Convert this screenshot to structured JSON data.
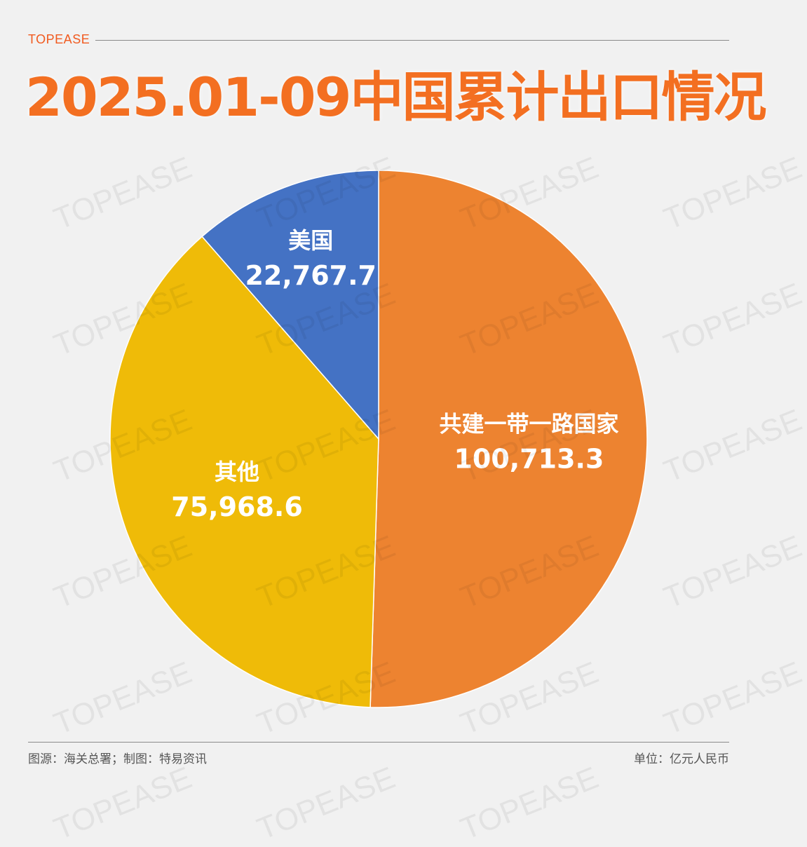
{
  "brand": "TOPEASE",
  "title": "2025.01-09中国累计出口情况",
  "source_note": "图源：海关总署；制图：特易资讯",
  "unit_note": "单位：亿元人民币",
  "watermark": "TOPEASE",
  "colors": {
    "accent": "#f36f21",
    "brand": "#f15a1f",
    "background": "#f1f1f1"
  },
  "chart_data": {
    "type": "pie",
    "title": "2025.01-09中国累计出口情况",
    "unit": "亿元人民币",
    "slices": [
      {
        "label": "共建一带一路国家",
        "value": 100713.3,
        "value_label": "100,713.3",
        "color": "#ed8330"
      },
      {
        "label": "其他",
        "value": 75968.6,
        "value_label": "75,968.6",
        "color": "#efbb08"
      },
      {
        "label": "美国",
        "value": 22767.7,
        "value_label": "22,767.7",
        "color": "#4472c4"
      }
    ]
  }
}
